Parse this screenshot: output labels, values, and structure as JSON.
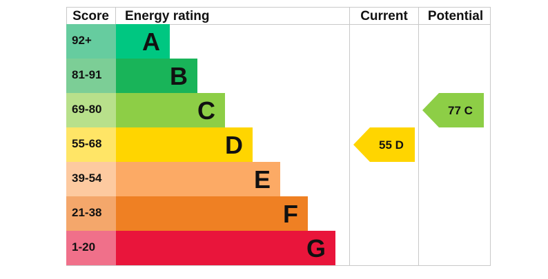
{
  "headers": {
    "score": "Score",
    "energy_rating": "Energy rating",
    "current": "Current",
    "potential": "Potential"
  },
  "chart_data": {
    "type": "bar",
    "bands": [
      {
        "letter": "A",
        "score_range": "92+",
        "band_color": "#00c781",
        "score_color": "#66cc9f"
      },
      {
        "letter": "B",
        "score_range": "81-91",
        "band_color": "#19b459",
        "score_color": "#7cce96"
      },
      {
        "letter": "C",
        "score_range": "69-80",
        "band_color": "#8dce46",
        "score_color": "#b8e08b"
      },
      {
        "letter": "D",
        "score_range": "55-68",
        "band_color": "#ffd500",
        "score_color": "#ffe566"
      },
      {
        "letter": "E",
        "score_range": "39-54",
        "band_color": "#fcaa65",
        "score_color": "#fdcaa0"
      },
      {
        "letter": "F",
        "score_range": "21-38",
        "band_color": "#ef8023",
        "score_color": "#f4a76b"
      },
      {
        "letter": "G",
        "score_range": "1-20",
        "band_color": "#e9153b",
        "score_color": "#f0708a"
      }
    ],
    "current": {
      "value": 55,
      "band": "D",
      "label": "55  D",
      "color": "#ffd500"
    },
    "potential": {
      "value": 77,
      "band": "C",
      "label": "77  C",
      "color": "#8dce46"
    }
  }
}
